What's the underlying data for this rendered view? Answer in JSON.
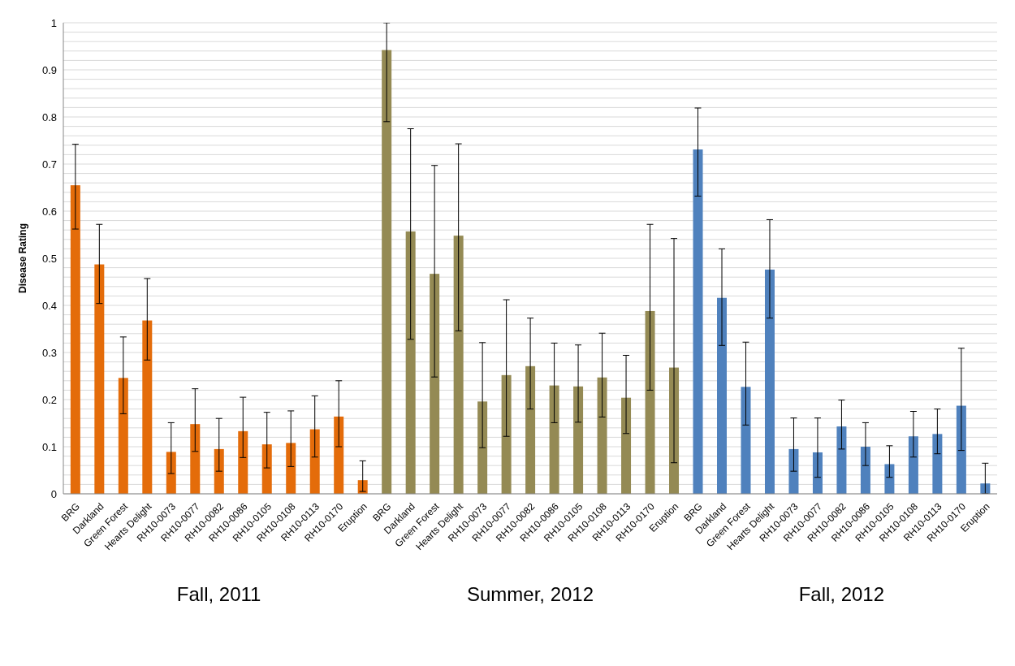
{
  "chart_data": {
    "type": "bar",
    "ylabel": "Disease Rating",
    "categories": [
      "BRG",
      "Darkland",
      "Green Forest",
      "Hearts Delight",
      "RH10-0073",
      "RH10-0077",
      "RH10-0082",
      "RH10-0086",
      "RH10-0105",
      "RH10-0108",
      "RH10-0113",
      "RH10-0170",
      "Eruption",
      "BRG",
      "Darkland",
      "Green Forest",
      "Hearts Delight",
      "RH10-0073",
      "RH10-0077",
      "RH10-0082",
      "RH10-0086",
      "RH10-0105",
      "RH10-0108",
      "RH10-0113",
      "RH10-0170",
      "Eruption",
      "BRG",
      "Darkland",
      "Green Forest",
      "Hearts Delight",
      "RH10-0073",
      "RH10-0077",
      "RH10-0082",
      "RH10-0086",
      "RH10-0105",
      "RH10-0108",
      "RH10-0113",
      "RH10-0170",
      "Eruption"
    ],
    "values": [
      0.655,
      0.487,
      0.246,
      0.368,
      0.089,
      0.148,
      0.095,
      0.133,
      0.105,
      0.108,
      0.137,
      0.164,
      0.029,
      0.942,
      0.557,
      0.467,
      0.548,
      0.196,
      0.252,
      0.271,
      0.23,
      0.228,
      0.247,
      0.204,
      0.388,
      0.268,
      0.731,
      0.416,
      0.227,
      0.476,
      0.095,
      0.088,
      0.143,
      0.1,
      0.063,
      0.122,
      0.127,
      0.187,
      0.022
    ],
    "errors": [
      [
        0.562,
        0.742
      ],
      [
        0.404,
        0.572
      ],
      [
        0.17,
        0.333
      ],
      [
        0.284,
        0.457
      ],
      [
        0.043,
        0.151
      ],
      [
        0.09,
        0.223
      ],
      [
        0.048,
        0.16
      ],
      [
        0.077,
        0.205
      ],
      [
        0.055,
        0.173
      ],
      [
        0.058,
        0.176
      ],
      [
        0.078,
        0.208
      ],
      [
        0.1,
        0.24
      ],
      [
        0.005,
        0.07
      ],
      [
        0.79,
        1.0
      ],
      [
        0.328,
        0.775
      ],
      [
        0.248,
        0.697
      ],
      [
        0.346,
        0.743
      ],
      [
        0.098,
        0.321
      ],
      [
        0.122,
        0.412
      ],
      [
        0.18,
        0.373
      ],
      [
        0.151,
        0.32
      ],
      [
        0.152,
        0.316
      ],
      [
        0.163,
        0.341
      ],
      [
        0.128,
        0.294
      ],
      [
        0.22,
        0.572
      ],
      [
        0.066,
        0.542
      ],
      [
        0.632,
        0.819
      ],
      [
        0.315,
        0.52
      ],
      [
        0.146,
        0.322
      ],
      [
        0.373,
        0.582
      ],
      [
        0.048,
        0.161
      ],
      [
        0.035,
        0.161
      ],
      [
        0.095,
        0.199
      ],
      [
        0.06,
        0.151
      ],
      [
        0.035,
        0.102
      ],
      [
        0.078,
        0.175
      ],
      [
        0.085,
        0.18
      ],
      [
        0.092,
        0.309
      ],
      [
        0.0,
        0.065
      ]
    ],
    "colors": [
      "#e46c0a",
      "#e46c0a",
      "#e46c0a",
      "#e46c0a",
      "#e46c0a",
      "#e46c0a",
      "#e46c0a",
      "#e46c0a",
      "#e46c0a",
      "#e46c0a",
      "#e46c0a",
      "#e46c0a",
      "#e46c0a",
      "#948a54",
      "#948a54",
      "#948a54",
      "#948a54",
      "#948a54",
      "#948a54",
      "#948a54",
      "#948a54",
      "#948a54",
      "#948a54",
      "#948a54",
      "#948a54",
      "#948a54",
      "#4f81bd",
      "#4f81bd",
      "#4f81bd",
      "#4f81bd",
      "#4f81bd",
      "#4f81bd",
      "#4f81bd",
      "#4f81bd",
      "#4f81bd",
      "#4f81bd",
      "#4f81bd",
      "#4f81bd",
      "#4f81bd"
    ],
    "annotations": [
      "Fall, 2011",
      "Summer, 2012",
      "Fall, 2012"
    ],
    "ylim": [
      0,
      1
    ],
    "yticks": [
      0,
      {
        "value": 0.02,
        "label": null
      },
      {
        "value": 0.04,
        "label": null
      },
      {
        "value": 0.06,
        "label": null
      },
      {
        "value": 0.08,
        "label": null
      },
      0.1,
      {
        "value": 0.12,
        "label": null
      },
      {
        "value": 0.14,
        "label": null
      },
      {
        "value": 0.16,
        "label": null
      },
      {
        "value": 0.18,
        "label": null
      },
      0.2,
      {
        "value": 0.22,
        "label": null
      },
      {
        "value": 0.24,
        "label": null
      },
      {
        "value": 0.26,
        "label": null
      },
      {
        "value": 0.28,
        "label": null
      },
      0.3,
      {
        "value": 0.32,
        "label": null
      },
      {
        "value": 0.34,
        "label": null
      },
      {
        "value": 0.36,
        "label": null
      },
      {
        "value": 0.38,
        "label": null
      },
      0.4,
      {
        "value": 0.42,
        "label": null
      },
      {
        "value": 0.44,
        "label": null
      },
      {
        "value": 0.46,
        "label": null
      },
      {
        "value": 0.48,
        "label": null
      },
      0.5,
      {
        "value": 0.52,
        "label": null
      },
      {
        "value": 0.54,
        "label": null
      },
      {
        "value": 0.56,
        "label": null
      },
      {
        "value": 0.58,
        "label": null
      },
      0.6,
      {
        "value": 0.62,
        "label": null
      },
      {
        "value": 0.64,
        "label": null
      },
      {
        "value": 0.66,
        "label": null
      },
      {
        "value": 0.68,
        "label": null
      },
      0.7,
      {
        "value": 0.72,
        "label": null
      },
      {
        "value": 0.74,
        "label": null
      },
      {
        "value": 0.76,
        "label": null
      },
      {
        "value": 0.78,
        "label": null
      },
      0.8,
      {
        "value": 0.82,
        "label": null
      },
      {
        "value": 0.84,
        "label": null
      },
      {
        "value": 0.86,
        "label": null
      },
      {
        "value": 0.88,
        "label": null
      },
      0.9,
      {
        "value": 0.92,
        "label": null
      },
      {
        "value": 0.94,
        "label": null
      },
      {
        "value": 0.96,
        "label": null
      },
      {
        "value": 0.98,
        "label": null
      },
      1
    ],
    "grid": "y"
  }
}
